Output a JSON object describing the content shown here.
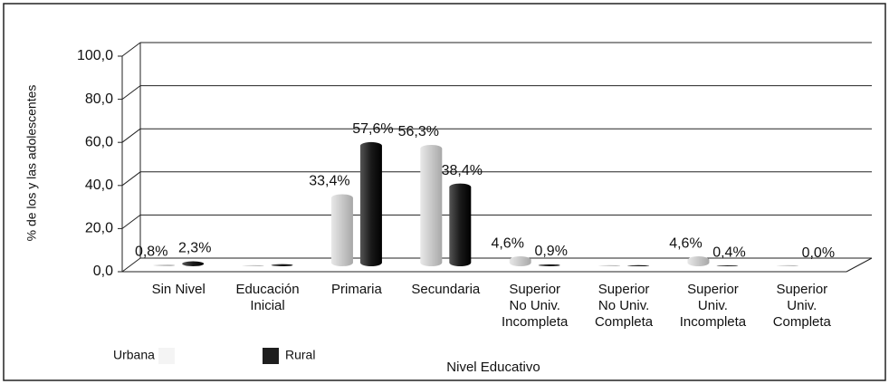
{
  "chart_data": {
    "type": "bar",
    "x_label": "Nivel Educativo",
    "y_label": "% de los y las adolescentes",
    "categories": [
      "Sin Nivel",
      "Educación\nInicial",
      "Primaria",
      "Secundaria",
      "Superior\nNo Univ.\nIncompleta",
      "Superior\nNo Univ.\nCompleta",
      "Superior\nUniv.\nIncompleta",
      "Superior\nUniv.\nCompleta"
    ],
    "series": [
      {
        "name": "Urbana",
        "color": "#d4d4d4",
        "values": [
          0.8,
          0.5,
          33.4,
          56.3,
          4.6,
          0.5,
          4.6,
          0.5
        ],
        "value_labels": [
          "0,8%",
          null,
          "33,4%",
          "56,3%",
          "4,6%",
          null,
          "4,6%",
          null
        ]
      },
      {
        "name": "Rural",
        "color": "#1e1e1e",
        "values": [
          2.3,
          1.0,
          57.6,
          38.4,
          0.9,
          0.5,
          0.4,
          0.0
        ],
        "value_labels": [
          "2,3%",
          null,
          "57,6%",
          "38,4%",
          "0,9%",
          null,
          "0,4%",
          "0,0%"
        ]
      }
    ],
    "ylim": [
      0,
      100
    ],
    "yticks": [
      {
        "value": 0,
        "label": "0,0"
      },
      {
        "value": 20,
        "label": "20,0"
      },
      {
        "value": 40,
        "label": "40,0"
      },
      {
        "value": 60,
        "label": "60,0"
      },
      {
        "value": 80,
        "label": "80,0"
      },
      {
        "value": 100,
        "label": "100,0"
      }
    ],
    "grid": true,
    "legend": "bottom-left"
  }
}
